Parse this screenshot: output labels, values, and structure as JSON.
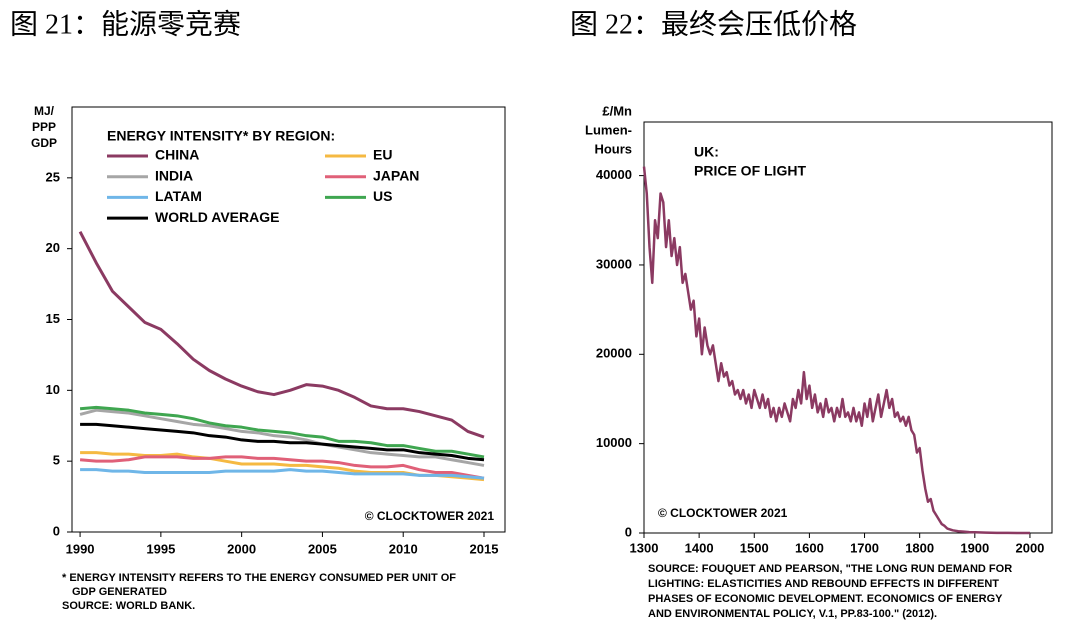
{
  "chart_data": [
    {
      "type": "line",
      "title": "图 21：能源零竞赛",
      "ylabel": [
        "MJ/",
        "PPP",
        "GDP"
      ],
      "legend_title": "ENERGY INTENSITY* BY REGION:",
      "credit": "© CLOCKTOWER 2021",
      "notes": [
        "* ENERGY INTENSITY REFERS TO THE ENERGY CONSUMED PER UNIT OF",
        "GDP GENERATED",
        "SOURCE: WORLD BANK."
      ],
      "x": [
        1990,
        1991,
        1992,
        1993,
        1994,
        1995,
        1996,
        1997,
        1998,
        1999,
        2000,
        2001,
        2002,
        2003,
        2004,
        2005,
        2006,
        2007,
        2008,
        2009,
        2010,
        2011,
        2012,
        2013,
        2014,
        2015
      ],
      "xlim": [
        1989.5,
        2016.3
      ],
      "xticks": [
        1990,
        1995,
        2000,
        2005,
        2010,
        2015
      ],
      "ylim": [
        0,
        30
      ],
      "yticks": [
        0,
        5,
        10,
        15,
        20,
        25
      ],
      "series": [
        {
          "name": "CHINA",
          "color": "#8b3a62",
          "values": [
            21.2,
            19.0,
            17.0,
            15.9,
            14.8,
            14.3,
            13.3,
            12.2,
            11.4,
            10.8,
            10.3,
            9.9,
            9.7,
            10.0,
            10.4,
            10.3,
            10.0,
            9.5,
            8.9,
            8.7,
            8.7,
            8.5,
            8.2,
            7.9,
            7.1,
            6.7
          ]
        },
        {
          "name": "EU",
          "color": "#f5b942",
          "values": [
            5.6,
            5.6,
            5.5,
            5.5,
            5.4,
            5.4,
            5.5,
            5.3,
            5.2,
            5.0,
            4.8,
            4.8,
            4.8,
            4.7,
            4.7,
            4.6,
            4.5,
            4.3,
            4.2,
            4.2,
            4.2,
            4.0,
            4.0,
            3.9,
            3.8,
            3.7
          ]
        },
        {
          "name": "INDIA",
          "color": "#a6a6a6",
          "values": [
            8.3,
            8.6,
            8.5,
            8.4,
            8.2,
            8.0,
            7.8,
            7.6,
            7.5,
            7.3,
            7.1,
            7.0,
            6.8,
            6.7,
            6.5,
            6.2,
            6.0,
            5.8,
            5.6,
            5.5,
            5.4,
            5.3,
            5.3,
            5.1,
            4.9,
            4.7
          ]
        },
        {
          "name": "JAPAN",
          "color": "#e06078",
          "values": [
            5.1,
            5.0,
            5.0,
            5.1,
            5.3,
            5.3,
            5.3,
            5.2,
            5.2,
            5.3,
            5.3,
            5.2,
            5.2,
            5.1,
            5.0,
            5.0,
            4.9,
            4.7,
            4.6,
            4.6,
            4.7,
            4.4,
            4.2,
            4.2,
            4.0,
            3.8
          ]
        },
        {
          "name": "LATAM",
          "color": "#6fb6e8",
          "values": [
            4.4,
            4.4,
            4.3,
            4.3,
            4.2,
            4.2,
            4.2,
            4.2,
            4.2,
            4.3,
            4.3,
            4.3,
            4.3,
            4.4,
            4.3,
            4.3,
            4.2,
            4.1,
            4.1,
            4.1,
            4.1,
            4.0,
            4.0,
            4.0,
            3.9,
            3.8
          ]
        },
        {
          "name": "US",
          "color": "#3fa650",
          "values": [
            8.7,
            8.8,
            8.7,
            8.6,
            8.4,
            8.3,
            8.2,
            8.0,
            7.7,
            7.5,
            7.4,
            7.2,
            7.1,
            7.0,
            6.8,
            6.7,
            6.4,
            6.4,
            6.3,
            6.1,
            6.1,
            5.9,
            5.7,
            5.7,
            5.5,
            5.3
          ]
        },
        {
          "name": "WORLD AVERAGE",
          "color": "#000000",
          "values": [
            7.6,
            7.6,
            7.5,
            7.4,
            7.3,
            7.2,
            7.1,
            7.0,
            6.8,
            6.7,
            6.5,
            6.4,
            6.4,
            6.3,
            6.3,
            6.2,
            6.1,
            6.0,
            5.9,
            5.8,
            5.8,
            5.6,
            5.5,
            5.4,
            5.2,
            5.1
          ]
        }
      ]
    },
    {
      "type": "line",
      "title": "图 22：最终会压低价格",
      "ylabel": [
        "£/Mn",
        "Lumen-",
        "Hours"
      ],
      "annotation": [
        "UK:",
        "PRICE OF LIGHT"
      ],
      "credit": "© CLOCKTOWER 2021",
      "notes": [
        "SOURCE: FOUQUET AND PEARSON, \"THE LONG RUN DEMAND FOR",
        "LIGHTING: ELASTICITIES AND REBOUND EFFECTS IN DIFFERENT",
        "PHASES OF ECONOMIC DEVELOPMENT. ECONOMICS OF ENERGY",
        "AND ENVIRONMENTAL POLICY, V.1, PP.83-100.\" (2012)."
      ],
      "color": "#8b3a62",
      "x": [
        1300,
        1305,
        1310,
        1315,
        1320,
        1325,
        1330,
        1335,
        1340,
        1345,
        1350,
        1355,
        1360,
        1365,
        1370,
        1375,
        1380,
        1385,
        1390,
        1395,
        1400,
        1405,
        1410,
        1415,
        1420,
        1425,
        1430,
        1435,
        1440,
        1445,
        1450,
        1455,
        1460,
        1465,
        1470,
        1475,
        1480,
        1485,
        1490,
        1495,
        1500,
        1505,
        1510,
        1515,
        1520,
        1525,
        1530,
        1535,
        1540,
        1545,
        1550,
        1555,
        1560,
        1565,
        1570,
        1575,
        1580,
        1585,
        1590,
        1595,
        1600,
        1605,
        1610,
        1615,
        1620,
        1625,
        1630,
        1635,
        1640,
        1645,
        1650,
        1655,
        1660,
        1665,
        1670,
        1675,
        1680,
        1685,
        1690,
        1695,
        1700,
        1705,
        1710,
        1715,
        1720,
        1725,
        1730,
        1735,
        1740,
        1745,
        1750,
        1755,
        1760,
        1765,
        1770,
        1775,
        1780,
        1785,
        1790,
        1795,
        1800,
        1805,
        1810,
        1815,
        1820,
        1825,
        1830,
        1835,
        1840,
        1845,
        1850,
        1860,
        1870,
        1880,
        1890,
        1900,
        1920,
        1940,
        1960,
        1980,
        2000
      ],
      "values": [
        41000,
        38000,
        32000,
        28000,
        35000,
        33000,
        38000,
        37000,
        32000,
        35000,
        31000,
        33000,
        30000,
        32000,
        28000,
        29000,
        27000,
        25000,
        26000,
        22000,
        24000,
        20000,
        23000,
        21000,
        20000,
        21000,
        19000,
        17000,
        19000,
        17500,
        18000,
        16500,
        17000,
        15500,
        16000,
        15000,
        16000,
        14500,
        15500,
        14000,
        16000,
        15000,
        14000,
        15500,
        14000,
        15000,
        13000,
        14000,
        12500,
        14000,
        13000,
        14500,
        13500,
        12500,
        15000,
        14000,
        16000,
        14500,
        18000,
        15000,
        16500,
        14000,
        15500,
        13500,
        14500,
        13000,
        15000,
        13500,
        14000,
        12500,
        14000,
        13000,
        15000,
        13000,
        13500,
        12500,
        14000,
        12500,
        13500,
        12000,
        14500,
        13000,
        15000,
        12500,
        14000,
        15500,
        13000,
        14500,
        16000,
        14000,
        15000,
        13000,
        13500,
        12500,
        13000,
        12000,
        13000,
        11500,
        11000,
        9000,
        9500,
        7000,
        5000,
        3500,
        3800,
        2500,
        2000,
        1500,
        1000,
        800,
        500,
        300,
        200,
        150,
        100,
        80,
        40,
        20,
        10,
        5,
        3
      ],
      "xlim": [
        1300,
        2040
      ],
      "xticks": [
        1300,
        1400,
        1500,
        1600,
        1700,
        1800,
        1900,
        2000
      ],
      "ylim": [
        0,
        46000
      ],
      "yticks": [
        0,
        10000,
        20000,
        30000,
        40000
      ]
    }
  ]
}
